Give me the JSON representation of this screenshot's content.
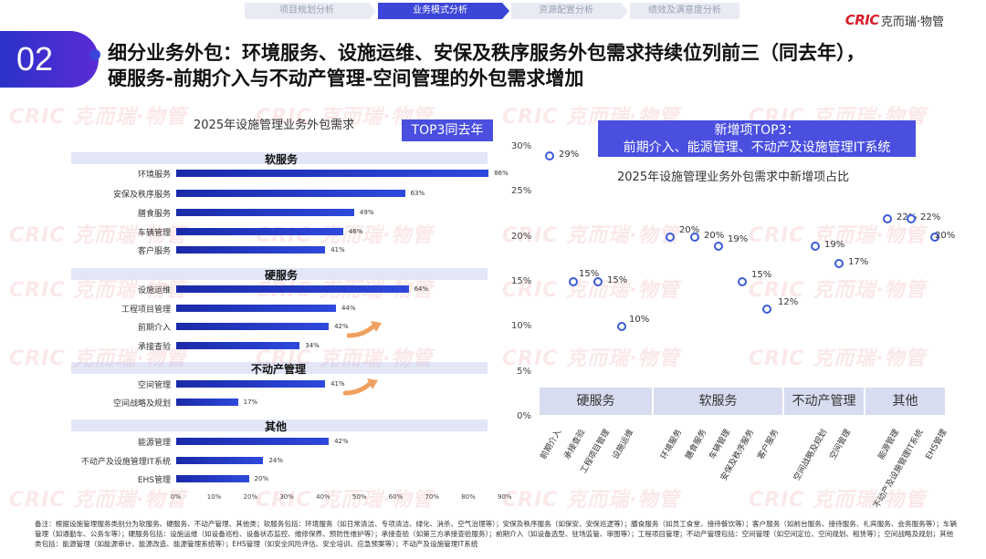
{
  "nav": {
    "steps": [
      "项目规划分析",
      "业务模式分析",
      "资源配置分析",
      "绩效及满意度分析"
    ],
    "active": 1
  },
  "logo": {
    "brand": "CRIC",
    "cn": "克而瑞·物管"
  },
  "badge": {
    "number": "02"
  },
  "title": {
    "line1": "细分业务外包：环境服务、设施运维、安保及秩序服务外包需求持续位列前三（同去年），",
    "line2": "硬服务-前期介入与不动产管理-空间管理的外包需求增加"
  },
  "watermark": "CRIC 克而瑞·物管",
  "colors": {
    "accent": "#4a4fe0",
    "bar": "#1e33c4",
    "brand": "#d81e2b"
  },
  "chart_data": [
    {
      "type": "bar",
      "orientation": "horizontal",
      "title": "2025年设施管理业务外包需求",
      "tag": "TOP3同去年",
      "xlim": [
        0,
        90
      ],
      "xticks": [
        "0%",
        "10%",
        "20%",
        "30%",
        "40%",
        "50%",
        "60%",
        "70%",
        "80%",
        "90%"
      ],
      "groups": [
        {
          "name": "软服务",
          "items": [
            {
              "label": "环境服务",
              "value": 86,
              "text": "86%"
            },
            {
              "label": "安保及秩序服务",
              "value": 63,
              "text": "63%"
            },
            {
              "label": "膳食服务",
              "value": 49,
              "text": "49%"
            },
            {
              "label": "车辆管理",
              "value": 46,
              "text": "46%"
            },
            {
              "label": "客户服务",
              "value": 41,
              "text": "41%"
            }
          ]
        },
        {
          "name": "硬服务",
          "items": [
            {
              "label": "设施运维",
              "value": 64,
              "text": "64%"
            },
            {
              "label": "工程项目管理",
              "value": 44,
              "text": "44%"
            },
            {
              "label": "前期介入",
              "value": 42,
              "text": "42%",
              "up": true
            },
            {
              "label": "承接查验",
              "value": 34,
              "text": "34%"
            }
          ]
        },
        {
          "name": "不动产管理",
          "items": [
            {
              "label": "空间管理",
              "value": 41,
              "text": "41%",
              "up": true
            },
            {
              "label": "空间战略及规划",
              "value": 17,
              "text": "17%"
            }
          ]
        },
        {
          "name": "其他",
          "items": [
            {
              "label": "能源管理",
              "value": 42,
              "text": "42%"
            },
            {
              "label": "不动产及设施管理IT系统",
              "value": 24,
              "text": "24%"
            },
            {
              "label": "EHS管理",
              "value": 20,
              "text": "20%"
            }
          ]
        }
      ]
    },
    {
      "type": "scatter",
      "title": "2025年设施管理业务外包需求中新增项占比",
      "tag_line1": "新增项TOP3：",
      "tag_line2": "前期介入、能源管理、不动产及设施管理IT系统",
      "ylim": [
        0,
        30
      ],
      "yticks": [
        "0%",
        "5%",
        "10%",
        "15%",
        "20%",
        "25%",
        "30%"
      ],
      "categories": [
        "前期介入",
        "承接查验",
        "工程项目管理",
        "设施运维",
        "环境服务",
        "膳食服务",
        "车辆管理",
        "安保及秩序服务",
        "客户服务",
        "空间战略及规划",
        "空间管理",
        "能源管理",
        "不动产及设施管理IT系统",
        "EHS管理"
      ],
      "values": [
        29,
        15,
        15,
        10,
        20,
        20,
        19,
        15,
        12,
        19,
        17,
        22,
        22,
        20
      ],
      "labels": [
        "29%",
        "15%",
        "15%",
        "10%",
        "20%",
        "20%",
        "19%",
        "15%",
        "12%",
        "19%",
        "17%",
        "22%",
        "22%",
        "20%"
      ],
      "groups": [
        {
          "name": "硬服务",
          "count": 4
        },
        {
          "name": "软服务",
          "count": 5
        },
        {
          "name": "不动产管理",
          "count": 2
        },
        {
          "name": "其他",
          "count": 3
        }
      ]
    }
  ],
  "footnote": "备注：根据设施管理服务类别分为软服务、硬服务、不动产管理、其他类；软服务包括：环境服务（如日常清洁、专项清洁、绿化、消杀、空气治理等）；安保及秩序服务（如保安、安保巡逻等）；膳食服务（如员工食堂、接待餐饮等）；客户服务（如前台服务、接待服务、礼宾服务、会务服务等）；车辆管理（如通勤车、公务车等）；硬服务包括：设施运维（如设备巡检、设备状态监控、维修保养、预防性维护等）；承接查验（如第三方承接查验服务）；前期介入（如设备选型、驻场监管、审图等）；工程项目管理；不动产管理包括：空间管理（如空间定位、空间规划、租赁等）；空间战略及规划；其他类包括：能源管理（如能源审计、能源改造、能源管理系统等）；EHS管理（如安全风险评估、安全培训、应急预案等）；不动产及设施管理IT系统"
}
